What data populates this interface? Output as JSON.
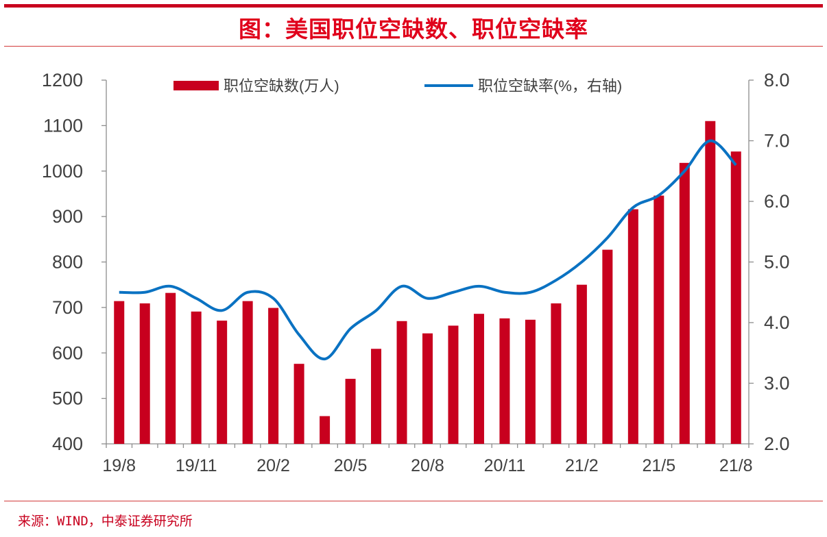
{
  "title": "图：美国职位空缺数、职位空缺率",
  "source": "来源：WIND，中泰证券研究所",
  "colors": {
    "bar": "#c8001e",
    "line": "#0a72c2",
    "axis": "#8c8c8c",
    "text": "#404040",
    "accent": "#c8001e"
  },
  "chart_data": {
    "type": "bar+line",
    "categories": [
      "19/8",
      "19/9",
      "19/10",
      "19/11",
      "19/12",
      "20/1",
      "20/2",
      "20/3",
      "20/4",
      "20/5",
      "20/6",
      "20/7",
      "20/8",
      "20/9",
      "20/10",
      "20/11",
      "20/12",
      "21/1",
      "21/2",
      "21/3",
      "21/4",
      "21/5",
      "21/6",
      "21/7",
      "21/8"
    ],
    "x_tick_labels": [
      "19/8",
      "",
      "",
      "19/11",
      "",
      "",
      "20/2",
      "",
      "",
      "20/5",
      "",
      "",
      "20/8",
      "",
      "",
      "20/11",
      "",
      "",
      "21/2",
      "",
      "",
      "21/5",
      "",
      "",
      "21/8"
    ],
    "series": [
      {
        "name": "职位空缺数(万人)",
        "type": "bar",
        "axis": "left",
        "values": [
          714,
          709,
          732,
          691,
          671,
          714,
          699,
          576,
          461,
          543,
          609,
          670,
          643,
          660,
          686,
          676,
          673,
          709,
          750,
          827,
          916,
          946,
          1018,
          1110,
          1043
        ]
      },
      {
        "name": "职位空缺率(%，右轴)",
        "type": "line",
        "axis": "right",
        "values": [
          4.5,
          4.5,
          4.6,
          4.4,
          4.2,
          4.5,
          4.4,
          3.8,
          3.4,
          3.9,
          4.2,
          4.6,
          4.4,
          4.5,
          4.6,
          4.5,
          4.5,
          4.7,
          5.0,
          5.4,
          5.9,
          6.1,
          6.5,
          7.0,
          6.6
        ]
      }
    ],
    "y_left": {
      "min": 400,
      "max": 1200,
      "ticks": [
        "400",
        "500",
        "600",
        "700",
        "800",
        "900",
        "1000",
        "1100",
        "1200"
      ]
    },
    "y_right": {
      "min": 2.0,
      "max": 8.0,
      "ticks": [
        "2.0",
        "3.0",
        "4.0",
        "5.0",
        "6.0",
        "7.0",
        "8.0"
      ]
    },
    "legend_position": "top-center",
    "grid": false
  }
}
